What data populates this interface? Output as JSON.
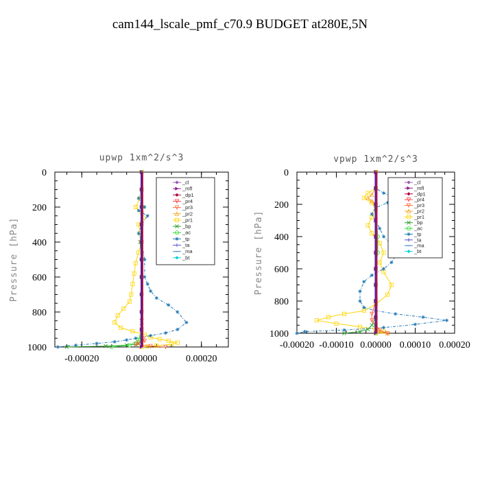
{
  "title": "cam144_lscale_pmf_c70.9  BUDGET at280E,5N",
  "legend_items": [
    "_cl",
    "_mfl",
    "_dp1",
    "_pr4",
    "_pr3",
    "_pr2",
    "_pr1",
    "_bp",
    "_ac",
    "_tp",
    "_ta",
    "_ma",
    "_bt"
  ],
  "legend_colors": [
    "#9b59b6",
    "#8b1a8b",
    "#b0003a",
    "#ff4444",
    "#ff6a3d",
    "#f5a623",
    "#ffd400",
    "#2ca02c",
    "#33dd33",
    "#1f77b4",
    "#5a4fd6",
    "#3a86c8",
    "#00d4e6"
  ],
  "legend_markers": [
    "diamond",
    "triangle-right",
    "diamond",
    "triangle-down",
    "triangle-down",
    "triangle-up",
    "square",
    "x",
    "circle",
    "star",
    "cross",
    "dash",
    "diamond"
  ],
  "chart_data": [
    {
      "type": "line",
      "title": "upwp   1xm^2/s^3",
      "xlabel": "",
      "ylabel": "Pressure [hPa]",
      "xlim": [
        -0.00029,
        0.00029
      ],
      "ylim": [
        1000,
        0
      ],
      "xticks": [
        -0.0002,
        0,
        0.0002
      ],
      "xtick_labels": [
        "-0.00020",
        "0.00000",
        "0.00020"
      ],
      "yticks": [
        0,
        200,
        400,
        600,
        800,
        1000
      ],
      "ytick_labels": [
        "0",
        "200",
        "400",
        "600",
        "800",
        "1000"
      ],
      "legend_position": "top-right",
      "series": [
        {
          "name": "_pr1",
          "color_index": 6,
          "x": [
            0,
            0,
            -5e-06,
            -2e-05,
            0,
            5e-06,
            -1e-05,
            -5e-06,
            0,
            -1e-05,
            -2e-05,
            -2.5e-05,
            -3e-05,
            -3.5e-05,
            -4e-05,
            -6e-05,
            -8e-05,
            -9e-05,
            -7e-05,
            -3e-05,
            1e-05,
            3e-05,
            6e-05,
            9e-05,
            0.00012,
            0.0001,
            5e-05,
            2e-05,
            0
          ],
          "y": [
            0,
            100,
            150,
            200,
            230,
            260,
            300,
            350,
            400,
            460,
            520,
            580,
            640,
            700,
            740,
            780,
            820,
            860,
            890,
            910,
            930,
            945,
            955,
            965,
            975,
            985,
            992,
            997,
            1000
          ]
        },
        {
          "name": "_tp",
          "color_index": 9,
          "x": [
            0,
            0,
            -1e-05,
            0,
            1e-05,
            -1e-05,
            2e-05,
            0,
            -1e-05,
            0,
            1e-05,
            1e-05,
            2e-05,
            3e-05,
            5e-05,
            9e-05,
            0.00012,
            0.00015,
            0.00012,
            8e-05,
            3e-05,
            -2e-05,
            -5e-05,
            -9e-05,
            -0.00015,
            -0.00022,
            -0.00028
          ],
          "y": [
            0,
            100,
            150,
            180,
            200,
            220,
            250,
            300,
            350,
            400,
            500,
            600,
            640,
            680,
            720,
            760,
            800,
            860,
            900,
            920,
            935,
            950,
            960,
            970,
            980,
            990,
            1000
          ]
        },
        {
          "name": "_bp",
          "color_index": 7,
          "x": [
            0,
            0,
            5e-06,
            0,
            -5e-06,
            0,
            0,
            0,
            0,
            0,
            0,
            0,
            0,
            0,
            0,
            0,
            -1e-05,
            -2e-05,
            -5e-05,
            -0.00012,
            -0.00025
          ],
          "y": [
            0,
            100,
            200,
            300,
            400,
            500,
            600,
            700,
            800,
            850,
            900,
            920,
            940,
            950,
            960,
            970,
            980,
            985,
            990,
            995,
            1000
          ]
        },
        {
          "name": "_pr3",
          "color_index": 4,
          "x": [
            0,
            0,
            0,
            0,
            0,
            0,
            0,
            0,
            0,
            0,
            0,
            0,
            0,
            0,
            5e-06,
            1e-05,
            -1e-05,
            -2e-05,
            3e-05,
            8e-05
          ],
          "y": [
            0,
            100,
            200,
            300,
            400,
            500,
            600,
            700,
            800,
            850,
            880,
            900,
            920,
            940,
            955,
            965,
            975,
            985,
            995,
            1000
          ]
        },
        {
          "name": "_ac",
          "color_index": 8,
          "x": [
            0,
            0,
            0,
            0,
            0,
            0,
            0,
            0,
            0,
            0,
            -1e-05,
            -4e-05,
            -0.0001
          ],
          "y": [
            0,
            100,
            200,
            300,
            400,
            500,
            600,
            700,
            800,
            900,
            960,
            990,
            1000
          ]
        },
        {
          "name": "_mfl",
          "color_index": 1,
          "x": [
            0,
            0,
            0,
            0,
            0,
            0,
            0,
            0,
            0,
            0,
            0
          ],
          "y": [
            0,
            100,
            200,
            300,
            400,
            500,
            600,
            700,
            800,
            900,
            1000
          ]
        }
      ]
    },
    {
      "type": "line",
      "title": "vpwp   1xm^2/s^3",
      "xlabel": "",
      "ylabel": "Pressure [hPa]",
      "xlim": [
        -0.0002,
        0.0002
      ],
      "ylim": [
        1000,
        0
      ],
      "xticks": [
        -0.0002,
        -0.0001,
        0,
        0.0001,
        0.0002
      ],
      "xtick_labels": [
        "-0.00020",
        "-0.00010",
        "0.00000",
        "0.00010",
        "0.00020"
      ],
      "yticks": [
        0,
        200,
        400,
        600,
        800,
        1000
      ],
      "ytick_labels": [
        "0",
        "200",
        "400",
        "600",
        "800",
        "1000"
      ],
      "legend_position": "top-right",
      "series": [
        {
          "name": "_pr1",
          "color_index": 6,
          "x": [
            0,
            0,
            -2e-05,
            -3e-05,
            -1e-05,
            0,
            -1e-05,
            -2e-05,
            -1e-05,
            1e-05,
            2e-05,
            1e-05,
            2e-05,
            4e-05,
            3e-05,
            0,
            -3e-05,
            -8e-05,
            -0.00012,
            -0.00015,
            -0.0001,
            -4e-05,
            0,
            2e-05,
            0
          ],
          "y": [
            0,
            100,
            130,
            160,
            190,
            230,
            280,
            330,
            380,
            440,
            500,
            560,
            620,
            700,
            760,
            820,
            860,
            880,
            900,
            920,
            940,
            960,
            975,
            990,
            1000
          ]
        },
        {
          "name": "_tp",
          "color_index": 9,
          "x": [
            0,
            0,
            2e-05,
            5e-05,
            3e-05,
            0,
            -1e-05,
            0,
            1e-05,
            2e-05,
            4e-05,
            5e-05,
            4e-05,
            2e-05,
            -1e-05,
            -3e-05,
            -4e-05,
            -4e-05,
            -3e-05,
            0,
            5e-05,
            0.00012,
            0.00018,
            0.0001,
            2e-05,
            -8e-05,
            -0.00018,
            -0.0002
          ],
          "y": [
            0,
            100,
            130,
            160,
            190,
            220,
            260,
            300,
            350,
            400,
            450,
            520,
            560,
            600,
            640,
            680,
            740,
            800,
            840,
            860,
            880,
            900,
            920,
            945,
            965,
            980,
            990,
            1000
          ]
        },
        {
          "name": "_pr2",
          "color_index": 5,
          "x": [
            0,
            0,
            -1e-05,
            -2e-05,
            -1e-05,
            0,
            0,
            0,
            0,
            0,
            0,
            0,
            0,
            0,
            0,
            0,
            1e-05,
            3e-05
          ],
          "y": [
            0,
            100,
            140,
            160,
            180,
            200,
            300,
            400,
            500,
            600,
            700,
            800,
            900,
            950,
            970,
            980,
            990,
            1000
          ]
        },
        {
          "name": "_bp",
          "color_index": 7,
          "x": [
            0,
            0,
            0,
            0,
            0,
            0,
            0,
            0,
            0,
            0,
            -1e-05,
            -2e-05,
            -4e-05,
            -8e-05
          ],
          "y": [
            0,
            100,
            200,
            300,
            400,
            500,
            600,
            700,
            800,
            900,
            950,
            975,
            990,
            1000
          ]
        },
        {
          "name": "_ac",
          "color_index": 8,
          "x": [
            0,
            0,
            0,
            5e-06,
            5e-06,
            0,
            0,
            0,
            0,
            0,
            0
          ],
          "y": [
            0,
            100,
            200,
            400,
            500,
            600,
            700,
            800,
            900,
            950,
            1000
          ]
        },
        {
          "name": "_pr3",
          "color_index": 4,
          "x": [
            0,
            0,
            0,
            0,
            0,
            0,
            0,
            0,
            0,
            -1e-05,
            -1e-05,
            0,
            1e-05,
            3e-05
          ],
          "y": [
            0,
            100,
            200,
            300,
            400,
            500,
            600,
            700,
            800,
            880,
            920,
            950,
            980,
            1000
          ]
        },
        {
          "name": "_mfl",
          "color_index": 1,
          "x": [
            0,
            0,
            0,
            0,
            0,
            0,
            0,
            0,
            0,
            0,
            0
          ],
          "y": [
            0,
            100,
            200,
            300,
            400,
            500,
            600,
            700,
            800,
            900,
            1000
          ]
        }
      ]
    }
  ]
}
